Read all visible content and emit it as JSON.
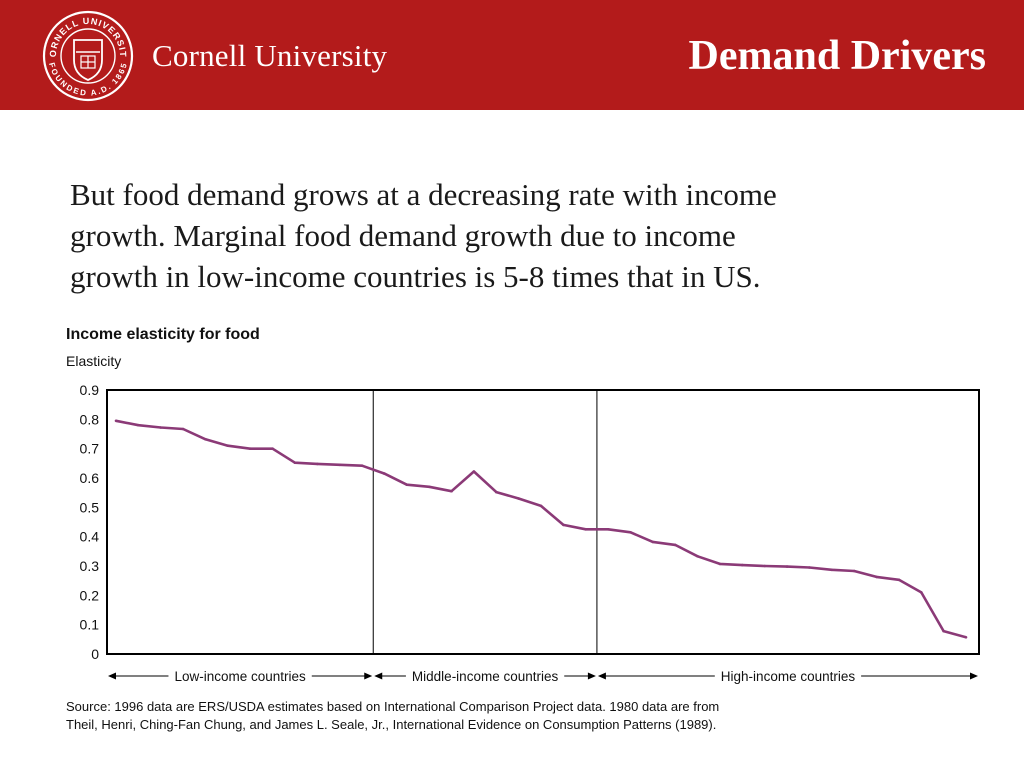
{
  "header": {
    "brand": "Cornell University",
    "slide_title": "Demand Drivers",
    "seal": {
      "text_top": "CORNELL UNIVERSITY",
      "text_bottom": "FOUNDED A.D. 1865"
    },
    "color": "#b31b1b"
  },
  "body": {
    "lines": [
      "But food demand grows at a decreasing rate with income",
      "growth.  Marginal food demand growth due to income",
      "growth in low-income countries is 5-8 times that in US."
    ]
  },
  "chart_data": {
    "type": "line",
    "title": "Income elasticity for food",
    "ylabel": "Elasticity",
    "xlabel": "",
    "ylim": [
      0,
      0.9
    ],
    "yticks": [
      "0",
      "0.1",
      "0.2",
      "0.3",
      "0.4",
      "0.5",
      "0.6",
      "0.7",
      "0.8",
      "0.9"
    ],
    "line_color": "#8b3a77",
    "values": [
      0.795,
      0.78,
      0.772,
      0.767,
      0.732,
      0.71,
      0.7,
      0.7,
      0.652,
      0.648,
      0.645,
      0.642,
      0.615,
      0.577,
      0.57,
      0.555,
      0.622,
      0.552,
      0.53,
      0.505,
      0.44,
      0.425,
      0.425,
      0.415,
      0.382,
      0.372,
      0.333,
      0.307,
      0.303,
      0.3,
      0.298,
      0.295,
      0.287,
      0.283,
      0.263,
      0.253,
      0.21,
      0.078,
      0.057
    ],
    "groups": [
      {
        "label": "Low-income countries",
        "start": 0,
        "end": 11
      },
      {
        "label": "Middle-income countries",
        "start": 12,
        "end": 21
      },
      {
        "label": "High-income countries",
        "start": 22,
        "end": 38
      }
    ]
  },
  "source": {
    "lines": [
      "Source: 1996 data are ERS/USDA estimates based on International Comparison Project data. 1980 data are from",
      "Theil, Henri, Ching-Fan Chung, and James L. Seale, Jr., International Evidence on Consumption Patterns (1989)."
    ]
  }
}
